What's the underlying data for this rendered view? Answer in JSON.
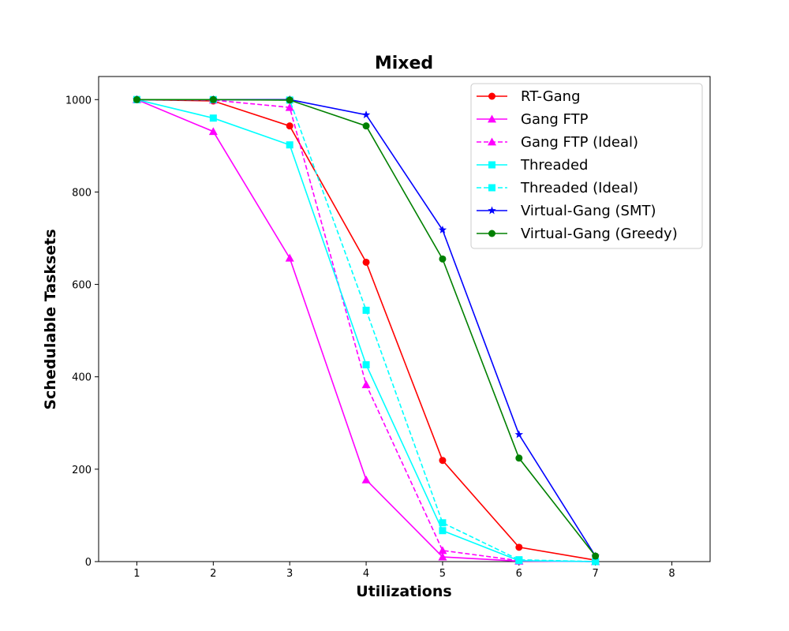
{
  "chart_data": {
    "type": "line",
    "title": "Mixed",
    "xlabel": "Utilizations",
    "ylabel": "Schedulable Tasksets",
    "xlim": [
      0.5,
      8.5
    ],
    "ylim": [
      0,
      1050
    ],
    "xticks": [
      1,
      2,
      3,
      4,
      5,
      6,
      7,
      8
    ],
    "yticks": [
      0,
      200,
      400,
      600,
      800,
      1000
    ],
    "grid": false,
    "legend_position": "top-right",
    "x": [
      1,
      2,
      3,
      4,
      5,
      6,
      7
    ],
    "series": [
      {
        "name": "RT-Gang",
        "color": "#ff0000",
        "dash": "solid",
        "marker": "circle",
        "values": [
          1000,
          997,
          943,
          648,
          219,
          31,
          3
        ]
      },
      {
        "name": "Gang FTP",
        "color": "#ff00ff",
        "dash": "solid",
        "marker": "triangle",
        "values": [
          1000,
          931,
          657,
          177,
          10,
          1,
          0
        ]
      },
      {
        "name": "Gang FTP (Ideal)",
        "color": "#ff00ff",
        "dash": "dashed",
        "marker": "triangle",
        "values": [
          1000,
          999,
          983,
          383,
          24,
          2,
          0
        ]
      },
      {
        "name": "Threaded",
        "color": "#00ffff",
        "dash": "solid",
        "marker": "square",
        "values": [
          1000,
          960,
          902,
          426,
          67,
          2,
          0
        ]
      },
      {
        "name": "Threaded (Ideal)",
        "color": "#00ffff",
        "dash": "dashed",
        "marker": "square",
        "values": [
          1000,
          1000,
          999,
          544,
          84,
          4,
          0
        ]
      },
      {
        "name": "Virtual-Gang (SMT)",
        "color": "#0000ff",
        "dash": "solid",
        "marker": "star",
        "values": [
          1000,
          1000,
          1000,
          967,
          718,
          275,
          12
        ]
      },
      {
        "name": "Virtual-Gang (Greedy)",
        "color": "#008000",
        "dash": "solid",
        "marker": "circle",
        "values": [
          1000,
          1000,
          999,
          943,
          655,
          224,
          12
        ]
      }
    ]
  }
}
